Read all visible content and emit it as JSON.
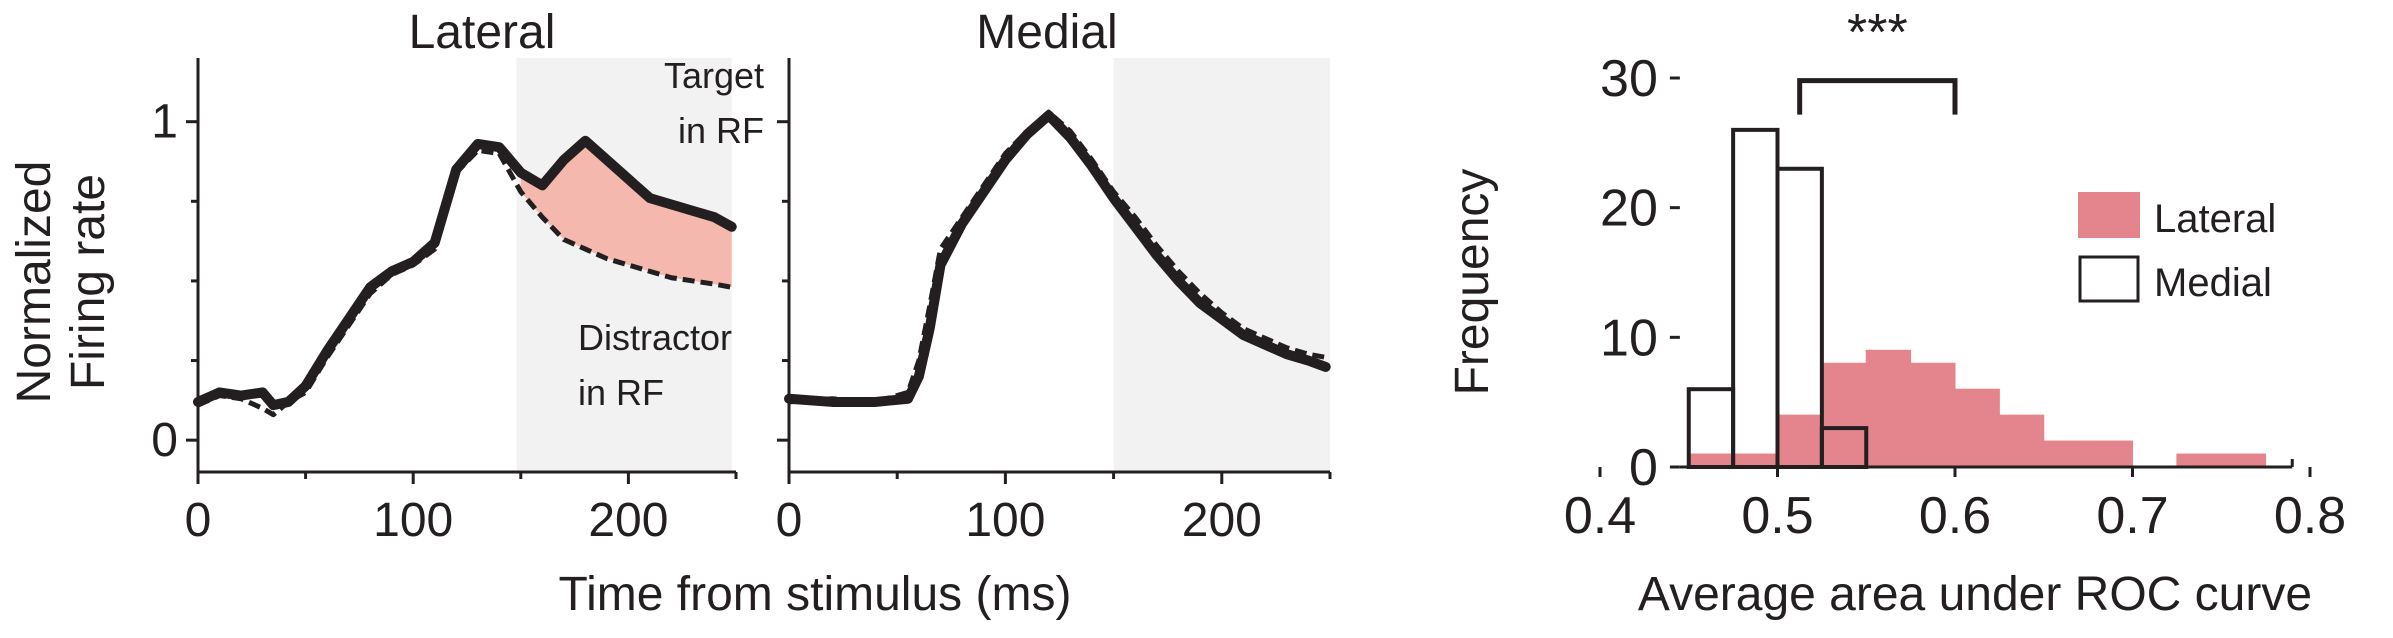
{
  "colors": {
    "ink": "#231f20",
    "target_shade": "#f4b8ae",
    "lateral_fill": "#e4848c",
    "window_shade": "#f2f2f2"
  },
  "shared_axes": {
    "ylabel_line1": "Normalized",
    "ylabel_line2": "Firing rate",
    "xlabel": "Time from stimulus (ms)"
  },
  "chart_data": [
    {
      "type": "line",
      "title": "Lateral",
      "xlim": [
        0,
        250
      ],
      "ylim": [
        -0.1,
        1.2
      ],
      "xticks": [
        0,
        100,
        200
      ],
      "xtick_labels": [
        "0",
        "100",
        "200"
      ],
      "yticks": [
        0,
        1
      ],
      "ytick_labels": [
        "0",
        "1"
      ],
      "shaded_window": [
        148,
        248
      ],
      "x": [
        0,
        10,
        20,
        30,
        35,
        42,
        50,
        60,
        70,
        80,
        90,
        100,
        110,
        120,
        130,
        140,
        150,
        160,
        170,
        180,
        190,
        200,
        210,
        220,
        230,
        240,
        248
      ],
      "series": [
        {
          "style": "solid",
          "values": [
            0.12,
            0.15,
            0.14,
            0.15,
            0.11,
            0.12,
            0.17,
            0.28,
            0.38,
            0.48,
            0.53,
            0.56,
            0.62,
            0.85,
            0.93,
            0.92,
            0.84,
            0.8,
            0.88,
            0.94,
            0.88,
            0.82,
            0.76,
            0.74,
            0.72,
            0.7,
            0.67
          ]
        },
        {
          "style": "dashed",
          "values": [
            0.11,
            0.14,
            0.13,
            0.1,
            0.08,
            0.12,
            0.15,
            0.26,
            0.36,
            0.46,
            0.52,
            0.55,
            0.6,
            0.84,
            0.91,
            0.9,
            0.78,
            0.7,
            0.63,
            0.6,
            0.57,
            0.55,
            0.53,
            0.51,
            0.5,
            0.49,
            0.48
          ]
        }
      ],
      "annotations": [
        {
          "key": "target",
          "lines": [
            "Target",
            "in RF"
          ]
        },
        {
          "key": "distractor",
          "lines": [
            "Distractor",
            "in RF"
          ]
        }
      ]
    },
    {
      "type": "line",
      "title": "Medial",
      "xlim": [
        0,
        250
      ],
      "ylim": [
        -0.1,
        1.2
      ],
      "xticks": [
        0,
        100,
        200
      ],
      "xtick_labels": [
        "0",
        "100",
        "200"
      ],
      "yticks": [
        0,
        1
      ],
      "ytick_labels": [
        "",
        ""
      ],
      "shaded_window": [
        150,
        250
      ],
      "x": [
        0,
        20,
        40,
        55,
        60,
        65,
        70,
        80,
        90,
        100,
        110,
        120,
        130,
        140,
        150,
        160,
        170,
        180,
        190,
        200,
        210,
        220,
        230,
        240,
        248
      ],
      "series": [
        {
          "style": "solid",
          "values": [
            0.13,
            0.12,
            0.12,
            0.13,
            0.2,
            0.35,
            0.55,
            0.68,
            0.78,
            0.88,
            0.96,
            1.02,
            0.95,
            0.86,
            0.76,
            0.67,
            0.58,
            0.5,
            0.43,
            0.38,
            0.33,
            0.3,
            0.27,
            0.25,
            0.23
          ]
        },
        {
          "style": "dashed",
          "values": [
            0.12,
            0.13,
            0.12,
            0.15,
            0.25,
            0.42,
            0.6,
            0.7,
            0.8,
            0.9,
            0.97,
            1.03,
            0.97,
            0.88,
            0.78,
            0.7,
            0.61,
            0.53,
            0.46,
            0.4,
            0.35,
            0.32,
            0.29,
            0.27,
            0.26
          ]
        }
      ]
    },
    {
      "type": "bar",
      "title": "",
      "xlabel": "Average area under ROC curve",
      "ylabel": "Frequency",
      "xlim": [
        0.4,
        0.8
      ],
      "ylim": [
        0,
        30
      ],
      "xticks": [
        0.4,
        0.5,
        0.6,
        0.7,
        0.8
      ],
      "xtick_labels": [
        "0.4",
        "0.5",
        "0.6",
        "0.7",
        "0.8"
      ],
      "yticks": [
        0,
        10,
        20,
        30
      ],
      "ytick_labels": [
        "0",
        "10",
        "20",
        "30"
      ],
      "bin_width": 0.025,
      "series": [
        {
          "name": "Lateral",
          "style": "filled",
          "bins": [
            [
              0.4625,
              1
            ],
            [
              0.4875,
              1
            ],
            [
              0.5125,
              4
            ],
            [
              0.5375,
              8
            ],
            [
              0.5625,
              9
            ],
            [
              0.5875,
              8
            ],
            [
              0.6125,
              6
            ],
            [
              0.6375,
              4
            ],
            [
              0.6625,
              2
            ],
            [
              0.6875,
              2
            ],
            [
              0.7375,
              1
            ],
            [
              0.7625,
              1
            ]
          ]
        },
        {
          "name": "Medial",
          "style": "outline",
          "bins": [
            [
              0.4625,
              6
            ],
            [
              0.4875,
              26
            ],
            [
              0.5125,
              23
            ],
            [
              0.5375,
              3
            ]
          ]
        }
      ],
      "significance": {
        "label": "***",
        "x_from": 0.5125,
        "x_to": 0.6
      }
    }
  ]
}
